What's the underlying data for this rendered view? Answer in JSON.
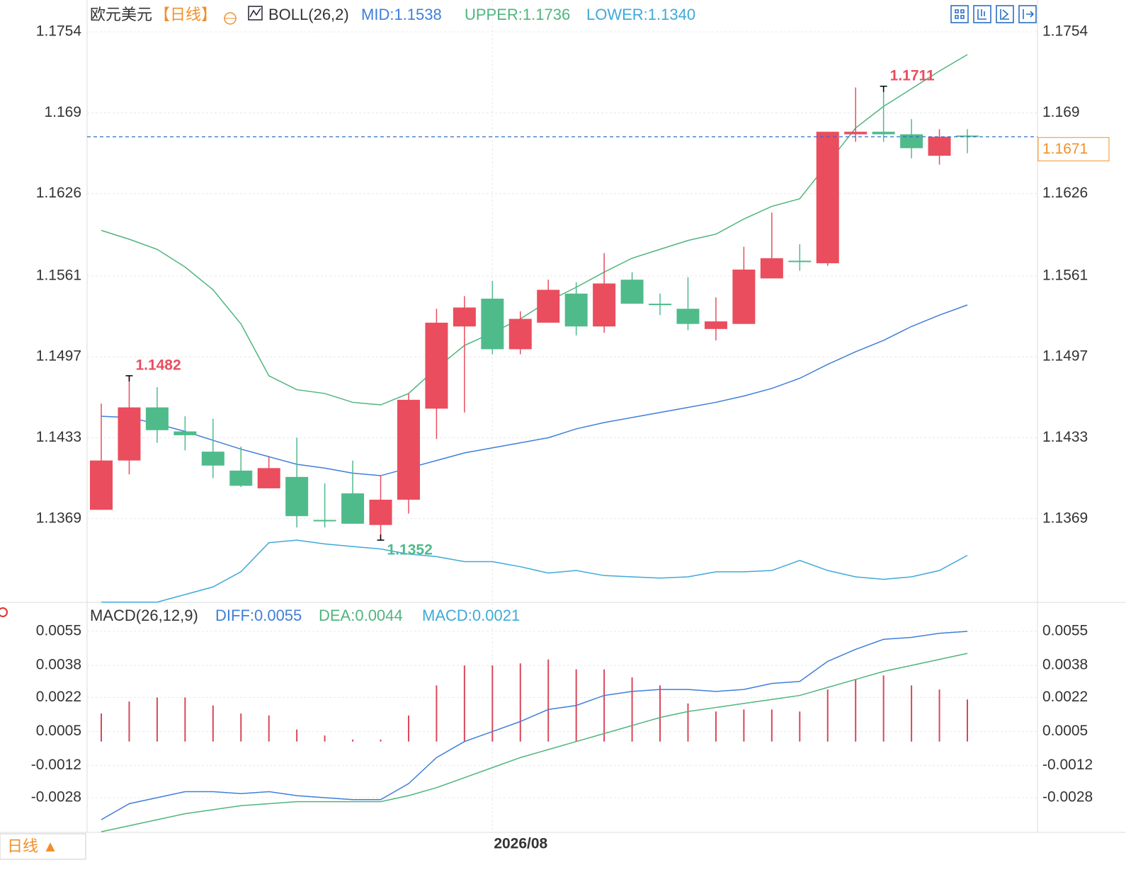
{
  "chart_data": [
    {
      "type": "candlestick",
      "title": "欧元美元",
      "period": "【日线】",
      "indicator": "BOLL(26,2)",
      "categories": [
        null,
        null,
        null,
        null,
        null,
        null,
        null,
        null,
        null,
        null,
        null,
        null,
        null,
        null,
        "2026/08",
        null,
        null,
        null,
        null,
        null,
        null,
        null,
        null,
        null,
        null,
        null,
        null,
        null,
        null,
        null,
        null,
        null
      ],
      "open": [
        1.1376,
        1.1415,
        1.1457,
        1.1438,
        1.1422,
        1.1407,
        1.1393,
        1.1402,
        1.1368,
        1.1389,
        1.1364,
        1.1384,
        1.1456,
        1.1521,
        1.1543,
        1.1503,
        1.1524,
        1.1547,
        1.1521,
        1.1558,
        1.1539,
        1.1535,
        1.1519,
        1.1523,
        1.1559,
        1.1573,
        1.1571,
        1.1673,
        1.1675,
        1.1673,
        1.1656,
        1.1672
      ],
      "high": [
        1.146,
        1.1482,
        1.1473,
        1.145,
        1.1448,
        1.1426,
        1.1418,
        1.1433,
        1.1397,
        1.1415,
        1.1403,
        1.1468,
        1.1535,
        1.1545,
        1.1557,
        1.1533,
        1.1558,
        1.1556,
        1.1579,
        1.1564,
        1.1547,
        1.156,
        1.1544,
        1.1584,
        1.1611,
        1.1586,
        1.1675,
        1.171,
        1.1711,
        1.1685,
        1.1677,
        1.1677
      ],
      "low": [
        1.1376,
        1.1404,
        1.1429,
        1.1423,
        1.1401,
        1.1394,
        1.1393,
        1.1362,
        1.1362,
        1.1365,
        1.1352,
        1.1373,
        1.1432,
        1.1453,
        1.1499,
        1.1499,
        1.1524,
        1.1514,
        1.1516,
        1.1539,
        1.153,
        1.1518,
        1.151,
        1.1523,
        1.1559,
        1.1565,
        1.1569,
        1.1667,
        1.1667,
        1.1654,
        1.1649,
        1.1658
      ],
      "close": [
        1.1415,
        1.1457,
        1.1439,
        1.1435,
        1.1411,
        1.1395,
        1.1409,
        1.1371,
        1.1367,
        1.1365,
        1.1384,
        1.1463,
        1.1524,
        1.1536,
        1.1503,
        1.1527,
        1.155,
        1.1521,
        1.1555,
        1.1539,
        1.1538,
        1.1523,
        1.1525,
        1.1566,
        1.1575,
        1.1572,
        1.1675,
        1.1675,
        1.1673,
        1.1662,
        1.1671,
        1.1671
      ],
      "high_value_labels": [
        null,
        "1.1482",
        null,
        null,
        null,
        null,
        null,
        null,
        null,
        null,
        null,
        null,
        null,
        null,
        null,
        null,
        null,
        null,
        null,
        null,
        null,
        null,
        null,
        null,
        null,
        null,
        null,
        null,
        "1.1711",
        null,
        null,
        null
      ],
      "low_value_labels": [
        null,
        null,
        null,
        null,
        null,
        null,
        null,
        null,
        null,
        null,
        "1.1352",
        null,
        null,
        null,
        null,
        null,
        null,
        null,
        null,
        null,
        null,
        null,
        null,
        null,
        null,
        null,
        null,
        null,
        null,
        null,
        null,
        null
      ],
      "up_color": "#ea4d5e",
      "down_color": "#4fbb8b",
      "series": [
        {
          "name": "MID:1.1538",
          "color": "#3f7fd9",
          "values": [
            1.145,
            1.1449,
            1.1444,
            1.1438,
            1.1431,
            1.1424,
            1.1418,
            1.1412,
            1.1409,
            1.1405,
            1.1403,
            1.1409,
            1.1415,
            1.1421,
            1.1425,
            1.1429,
            1.1433,
            1.144,
            1.1445,
            1.1449,
            1.1453,
            1.1457,
            1.1461,
            1.1466,
            1.1472,
            1.148,
            1.1491,
            1.1501,
            1.151,
            1.1521,
            1.153,
            1.1538
          ]
        },
        {
          "name": "UPPER:1.1736",
          "color": "#4fb57d",
          "values": [
            1.1597,
            1.159,
            1.1582,
            1.1568,
            1.155,
            1.1523,
            1.1482,
            1.1471,
            1.1468,
            1.1461,
            1.1459,
            1.1468,
            1.1488,
            1.1506,
            1.1516,
            1.1527,
            1.1541,
            1.1552,
            1.1564,
            1.1575,
            1.1582,
            1.1589,
            1.1594,
            1.1606,
            1.1616,
            1.1622,
            1.165,
            1.1678,
            1.1695,
            1.1709,
            1.1723,
            1.1736
          ]
        },
        {
          "name": "LOWER:1.1340",
          "color": "#3fa9d9",
          "values": [
            1.1303,
            1.1303,
            1.1303,
            1.1309,
            1.1315,
            1.1327,
            1.135,
            1.1352,
            1.1349,
            1.1347,
            1.1345,
            1.1341,
            1.1339,
            1.1335,
            1.1335,
            1.1331,
            1.1326,
            1.1328,
            1.1324,
            1.1323,
            1.1322,
            1.1323,
            1.1327,
            1.1327,
            1.1328,
            1.1336,
            1.1328,
            1.1323,
            1.1321,
            1.1323,
            1.1328,
            1.134
          ]
        }
      ],
      "last_price": 1.1671,
      "last_price_color": "#f0902a",
      "ylim": [
        1.1303,
        1.1776
      ],
      "yticks": [
        1.1754,
        1.169,
        1.1626,
        1.1561,
        1.1497,
        1.1433,
        1.1369
      ],
      "grid": true
    },
    {
      "type": "macd",
      "title": "MACD(26,12,9)",
      "series": [
        {
          "name": "DIFF:0.0055",
          "color": "#3f7fd9",
          "values": [
            -0.0039,
            -0.0031,
            -0.0028,
            -0.0025,
            -0.0025,
            -0.0026,
            -0.0025,
            -0.0027,
            -0.0028,
            -0.0029,
            -0.0029,
            -0.0021,
            -0.0008,
            0.0,
            0.0005,
            0.001,
            0.0016,
            0.0018,
            0.0023,
            0.0025,
            0.0026,
            0.0026,
            0.0025,
            0.0026,
            0.0029,
            0.003,
            0.004,
            0.0046,
            0.0051,
            0.0052,
            0.0054,
            0.0055
          ]
        },
        {
          "name": "DEA:0.0044",
          "color": "#4fb57d",
          "values": [
            -0.0045,
            -0.0042,
            -0.0039,
            -0.0036,
            -0.0034,
            -0.0032,
            -0.0031,
            -0.003,
            -0.003,
            -0.003,
            -0.003,
            -0.0027,
            -0.0023,
            -0.0018,
            -0.0013,
            -0.0008,
            -0.0004,
            0.0,
            0.0004,
            0.0008,
            0.0012,
            0.0015,
            0.0017,
            0.0019,
            0.0021,
            0.0023,
            0.0027,
            0.0031,
            0.0035,
            0.0038,
            0.0041,
            0.0044
          ]
        }
      ],
      "histogram": {
        "name": "MACD:0.0021",
        "color": "#d9475a",
        "legend_color": "#3fa9d9",
        "values": [
          0.0014,
          0.002,
          0.0022,
          0.0022,
          0.0018,
          0.0014,
          0.0013,
          0.0006,
          0.0003,
          0.0001,
          0.0001,
          0.0013,
          0.0028,
          0.0038,
          0.0038,
          0.0039,
          0.0041,
          0.0036,
          0.0036,
          0.0032,
          0.0028,
          0.0019,
          0.0015,
          0.0016,
          0.0016,
          0.0015,
          0.0026,
          0.0031,
          0.0033,
          0.0028,
          0.0026,
          0.0021
        ]
      },
      "ylim": [
        -0.0045,
        0.0067
      ],
      "yticks": [
        0.0055,
        0.0038,
        0.0022,
        0.0005,
        -0.0012,
        -0.0028
      ],
      "grid": true
    },
    {
      "type": "footer",
      "label": "日线 ▲"
    }
  ]
}
